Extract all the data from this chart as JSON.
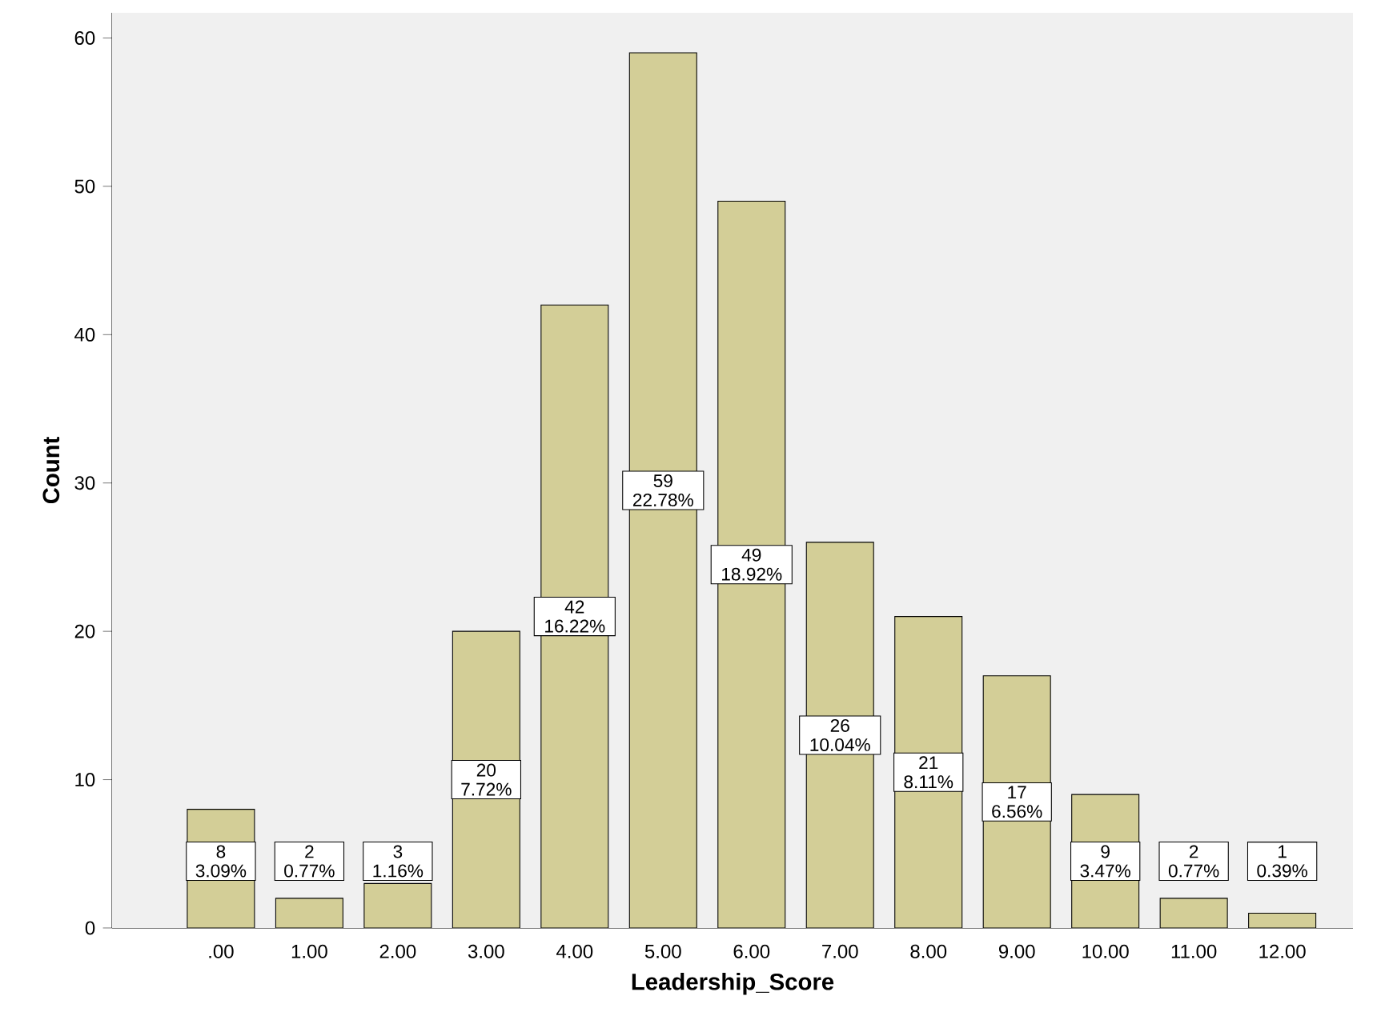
{
  "chart_data": {
    "type": "bar",
    "xlabel": "Leadership_Score",
    "ylabel": "Count",
    "categories": [
      ".00",
      "1.00",
      "2.00",
      "3.00",
      "4.00",
      "5.00",
      "6.00",
      "7.00",
      "8.00",
      "9.00",
      "10.00",
      "11.00",
      "12.00"
    ],
    "values": [
      8,
      2,
      3,
      20,
      42,
      59,
      49,
      26,
      21,
      17,
      9,
      2,
      1
    ],
    "value_labels": [
      "8 3.09%",
      "2 0.77%",
      "3 1.16%",
      "20 7.72%",
      "42 16.22%",
      "59 22.78%",
      "49 18.92%",
      "26 10.04%",
      "21 8.11%",
      "17 6.56%",
      "9 3.47%",
      "2 0.77%",
      "1 0.39%"
    ],
    "color": "#d3ce97",
    "ylim": [
      0,
      61.7
    ],
    "yticks": [
      0,
      10,
      20,
      30,
      40,
      50,
      60
    ],
    "grid": false
  }
}
